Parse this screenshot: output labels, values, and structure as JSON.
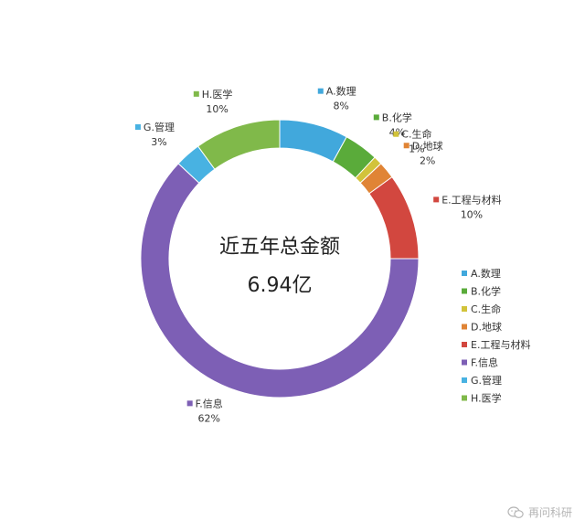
{
  "chart_data": {
    "type": "pie",
    "donut": true,
    "center_title": "近五年总金额",
    "center_value": "6.94亿",
    "start_angle_deg": 0,
    "direction": "clockwise",
    "slices": [
      {
        "label": "A.数理",
        "percent": "8%",
        "value": 8,
        "color": "#41a8dc"
      },
      {
        "label": "B.化学",
        "percent": "4%",
        "value": 4,
        "color": "#5aab3a"
      },
      {
        "label": "C.生命",
        "percent": "1%",
        "value": 1,
        "color": "#d2c33a"
      },
      {
        "label": "D.地球",
        "percent": "2%",
        "value": 2,
        "color": "#e08435"
      },
      {
        "label": "E.工程与材料",
        "percent": "10%",
        "value": 10,
        "color": "#d2473f"
      },
      {
        "label": "F.信息",
        "percent": "62%",
        "value": 62,
        "color": "#7d5fb5"
      },
      {
        "label": "G.管理",
        "percent": "3%",
        "value": 3,
        "color": "#48b2e2"
      },
      {
        "label": "H.医学",
        "percent": "10%",
        "value": 10,
        "color": "#80b94a"
      }
    ],
    "legend": {
      "position": "right",
      "items": [
        "A.数理",
        "B.化学",
        "C.生命",
        "D.地球",
        "E.工程与材料",
        "F.信息",
        "G.管理",
        "H.医学"
      ]
    }
  },
  "watermark": {
    "text": "再问科研",
    "icon": "wechat-icon"
  }
}
